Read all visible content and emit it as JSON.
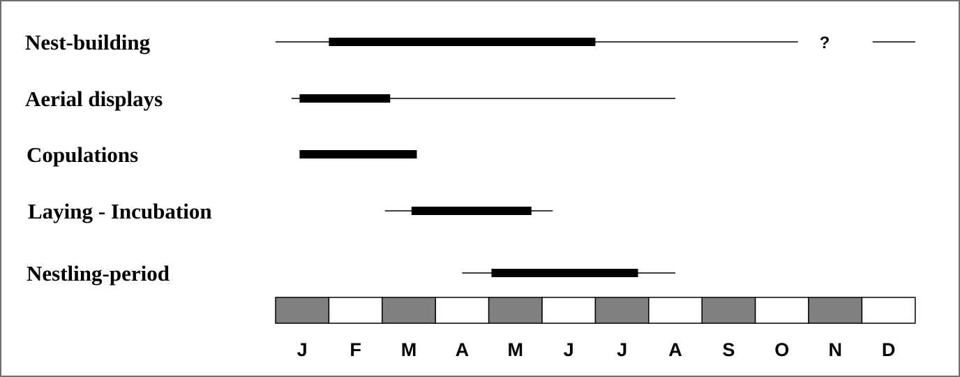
{
  "chart_data": {
    "type": "gantt",
    "title": "",
    "months": [
      "J",
      "F",
      "M",
      "A",
      "M",
      "J",
      "J",
      "A",
      "S",
      "O",
      "N",
      "D"
    ],
    "month_fill_colors": [
      "#808080",
      "#ffffff"
    ],
    "bar_color": "#000000",
    "rows": [
      {
        "label": "Nest-building",
        "thin_ranges": [
          [
            0.0,
            9.8
          ],
          [
            11.2,
            12.0
          ]
        ],
        "thick_ranges": [
          [
            1.0,
            6.0
          ]
        ],
        "annotations": [
          {
            "text": "?",
            "at": 10.3
          }
        ]
      },
      {
        "label": "Aerial displays",
        "thin_ranges": [
          [
            0.3,
            7.5
          ]
        ],
        "thick_ranges": [
          [
            0.45,
            2.15
          ]
        ],
        "annotations": []
      },
      {
        "label": "Copulations",
        "thin_ranges": [],
        "thick_ranges": [
          [
            0.45,
            2.65
          ]
        ],
        "annotations": []
      },
      {
        "label": "Laying - Incubation",
        "thin_ranges": [
          [
            2.05,
            5.2
          ]
        ],
        "thick_ranges": [
          [
            2.55,
            4.8
          ]
        ],
        "annotations": []
      },
      {
        "label": "Nestling-period",
        "thin_ranges": [
          [
            3.5,
            7.5
          ]
        ],
        "thick_ranges": [
          [
            4.05,
            6.8
          ]
        ],
        "annotations": []
      }
    ]
  }
}
